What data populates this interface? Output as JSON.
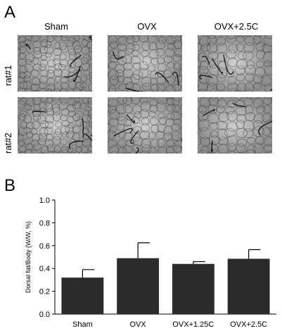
{
  "panel_a": {
    "letter": "A",
    "columns": [
      "Sham",
      "OVX",
      "OVX+2.5C"
    ],
    "rows": [
      "rat#1",
      "rat#2"
    ]
  },
  "panel_b": {
    "letter": "B"
  },
  "chart_data": {
    "type": "bar",
    "categories": [
      "Sham",
      "OVX",
      "OVX+1.25C",
      "OVX+2.5C"
    ],
    "values": [
      0.32,
      0.49,
      0.44,
      0.485
    ],
    "errors": [
      0.07,
      0.135,
      0.02,
      0.08
    ],
    "xlabel": "",
    "ylabel": "Dorsal fat/Body (W/W, %)",
    "ylim": [
      0.0,
      1.0
    ],
    "yticks": [
      "0.0",
      "0.2",
      "0.4",
      "0.6",
      "0.8",
      "1.0"
    ],
    "bar_color": "#2b2b2b",
    "grid": false
  }
}
